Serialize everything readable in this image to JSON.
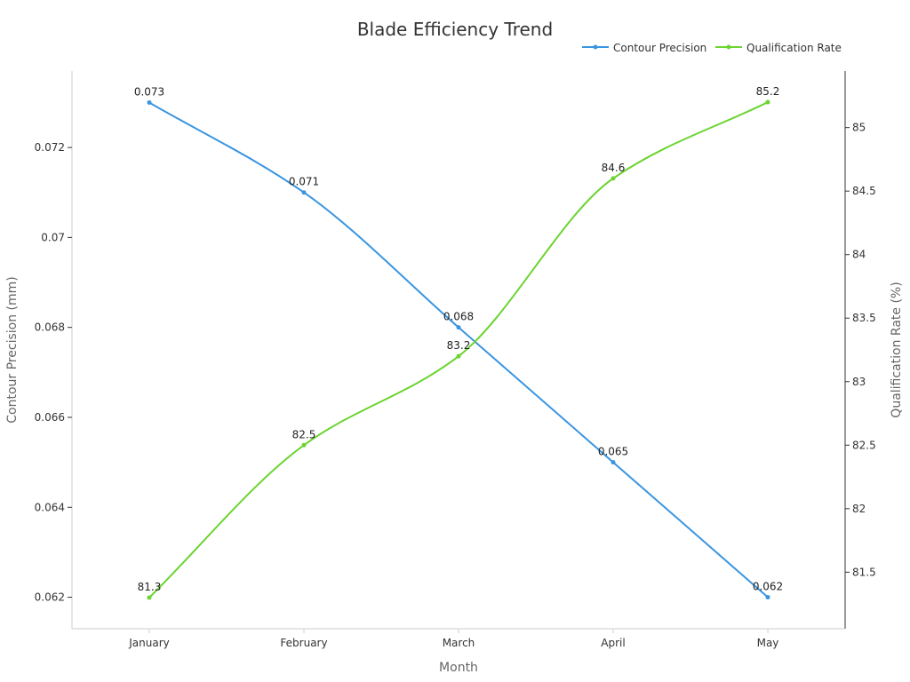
{
  "chart_data": {
    "type": "line",
    "title": "Blade Efficiency Trend",
    "xlabel": "Month",
    "categories": [
      "January",
      "February",
      "March",
      "April",
      "May"
    ],
    "series": [
      {
        "name": "Contour Precision",
        "axis": "left",
        "ylabel": "Contour Precision (mm)",
        "color": "#3a95e0",
        "values": [
          0.073,
          0.071,
          0.068,
          0.065,
          0.062
        ],
        "labels": [
          "0.073",
          "0.071",
          "0.068",
          "0.065",
          "0.062"
        ],
        "ylim": [
          0.0613,
          0.0737
        ],
        "ticks": [
          0.062,
          0.064,
          0.066,
          0.068,
          0.07,
          0.072
        ],
        "tick_labels": [
          "0.062",
          "0.064",
          "0.066",
          "0.068",
          "0.07",
          "0.072"
        ]
      },
      {
        "name": "Qualification Rate",
        "axis": "right",
        "ylabel": "Qualification Rate (%)",
        "color": "#6bd430",
        "values": [
          81.3,
          82.5,
          83.2,
          84.6,
          85.2
        ],
        "labels": [
          "81.3",
          "82.5",
          "83.2",
          "84.6",
          "85.2"
        ],
        "ylim": [
          81.055,
          85.445
        ],
        "ticks": [
          81.5,
          82,
          82.5,
          83,
          83.5,
          84,
          84.5,
          85
        ],
        "tick_labels": [
          "81.5",
          "82",
          "82.5",
          "83",
          "83.5",
          "84",
          "84.5",
          "85"
        ]
      }
    ],
    "legend": "top-right",
    "grid": false
  }
}
